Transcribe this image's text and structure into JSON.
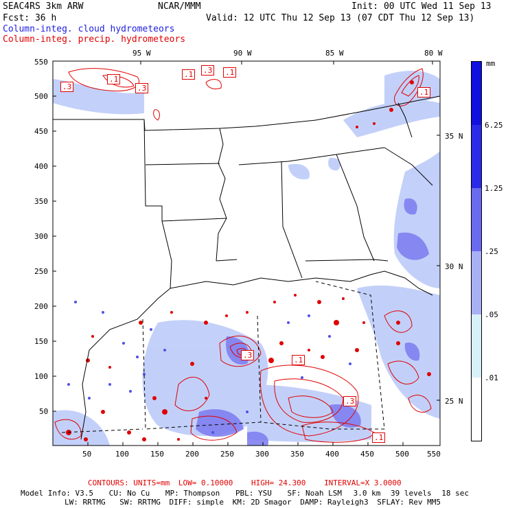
{
  "header": {
    "model": "SEAC4RS  3km ARW",
    "org": "NCAR/MMM",
    "init": "Init: 00 UTC Wed 11 Sep 13",
    "fcst": "Fcst:   36 h",
    "valid": "Valid: 12 UTC Thu 12 Sep 13 (07 CDT Thu 12 Sep 13)",
    "field1": "Column-integ. cloud hydrometeors",
    "field2": "Column-integ. precip. hydrometeors"
  },
  "map": {
    "lon_labels": [
      "95 W",
      "90 W",
      "85 W",
      "80 W"
    ],
    "lat_labels": [
      "35 N",
      "30 N",
      "25 N"
    ],
    "x_ticks": [
      "50",
      "100",
      "150",
      "200",
      "250",
      "300",
      "350",
      "400",
      "450",
      "500",
      "550"
    ],
    "y_ticks": [
      "550",
      "500",
      "450",
      "400",
      "350",
      "300",
      "250",
      "200",
      "150",
      "100",
      "50"
    ],
    "contour_labels": [
      ".3",
      ".1",
      ".3",
      ".1",
      ".3",
      ".1",
      ".3",
      ".1",
      ".3",
      ".1",
      ".1"
    ]
  },
  "colorbar": {
    "unit": "mm",
    "labels": [
      "6.25",
      "1.25",
      ".25",
      ".05",
      ".01"
    ],
    "colors": [
      "#1010e0",
      "#4a4ae8",
      "#8080f0",
      "#b8c8f8",
      "#d8f0f8",
      "#ffffff"
    ]
  },
  "footer": {
    "contours_label": "CONTOURS:",
    "units": "UNITS=mm",
    "low": "LOW= 0.10000",
    "high": "HIGH=  24.300",
    "interval": "INTERVAL=X  3.0000",
    "model_info": "Model Info: V3.5",
    "cu": "CU: No Cu",
    "mp": "MP: Thompson",
    "pbl": "PBL: YSU",
    "sf": "SF: Noah LSM",
    "res": "3.0 km",
    "levels": "39 levels",
    "dt": "18 sec",
    "lw": "LW: RRTMG",
    "sw": "SW: RRTMG",
    "diff": "DIFF: simple",
    "km": "KM: 2D Smagor",
    "damp": "DAMP: Rayleigh3",
    "sflay": "SFLAY: Rev MM5"
  }
}
